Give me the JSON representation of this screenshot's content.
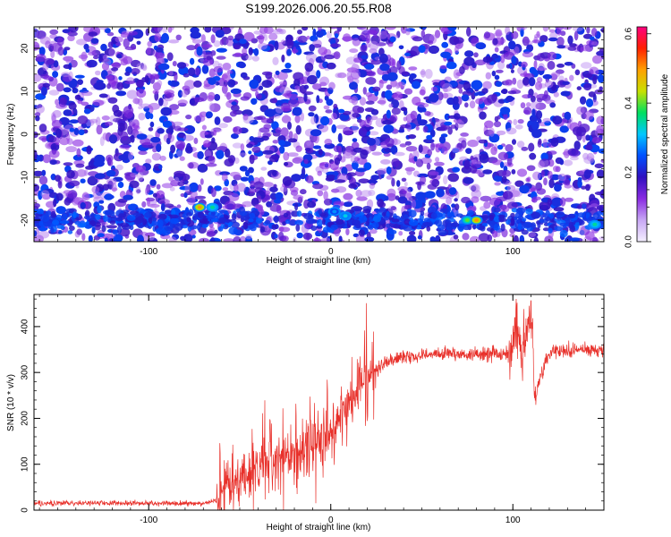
{
  "title": "S199.2026.006.20.55.R08",
  "chart_data": [
    {
      "type": "heatmap",
      "xlabel": "Height of straight line (km)",
      "ylabel": "Frequency (Hz)",
      "xlim": [
        -163,
        150
      ],
      "ylim": [
        -25,
        25
      ],
      "xticks": [
        -100,
        0,
        100
      ],
      "yticks": [
        -20,
        -10,
        0,
        10,
        20
      ],
      "colorbar": {
        "label": "Normalized spectral amplitude",
        "range": [
          0.0,
          0.62
        ],
        "ticks": [
          0.0,
          0.2,
          0.4,
          0.6
        ],
        "colormap": [
          "#f5f0ff",
          "#c8a8f5",
          "#8a2be2",
          "#3010c0",
          "#0050ff",
          "#00c8ff",
          "#00e060",
          "#c8e000",
          "#ffa000",
          "#ff2000",
          "#ff0080"
        ]
      },
      "noise_level": 0.08,
      "bright_band": {
        "frequency_hz": -20,
        "hotspots": [
          {
            "x_km": -72,
            "f_hz": -17,
            "amplitude": 0.5
          },
          {
            "x_km": -65,
            "f_hz": -17,
            "amplitude": 0.35
          },
          {
            "x_km": 2,
            "f_hz": -18,
            "amplitude": 0.28
          },
          {
            "x_km": 8,
            "f_hz": -19,
            "amplitude": 0.32
          },
          {
            "x_km": 75,
            "f_hz": -20,
            "amplitude": 0.4
          },
          {
            "x_km": 80,
            "f_hz": -20,
            "amplitude": 0.5
          },
          {
            "x_km": 145,
            "f_hz": -21,
            "amplitude": 0.35
          }
        ]
      }
    },
    {
      "type": "line",
      "xlabel": "Height of straight line (km)",
      "ylabel": "SNR (10 * v/v)",
      "xlim": [
        -163,
        150
      ],
      "ylim": [
        0,
        470
      ],
      "xticks": [
        -100,
        0,
        100
      ],
      "yticks": [
        0,
        100,
        200,
        300,
        400
      ],
      "color": "#e8302a",
      "x": [
        -163,
        -100,
        -70,
        -63,
        -60,
        -50,
        -40,
        -30,
        -20,
        -10,
        0,
        10,
        20,
        30,
        40,
        60,
        80,
        100,
        102,
        105,
        110,
        112,
        120,
        150
      ],
      "y": [
        15,
        15,
        15,
        20,
        40,
        70,
        100,
        110,
        120,
        140,
        180,
        240,
        290,
        320,
        335,
        340,
        340,
        340,
        410,
        330,
        430,
        250,
        345,
        350
      ]
    }
  ]
}
